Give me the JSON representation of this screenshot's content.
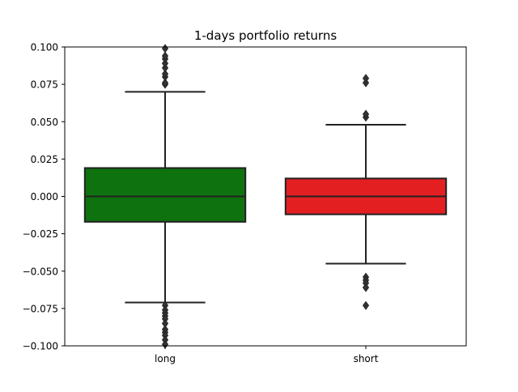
{
  "chart_data": {
    "type": "box",
    "title": "1-days portfolio returns",
    "xlabel": "",
    "ylabel": "",
    "categories": [
      "long",
      "short"
    ],
    "ylim": [
      -0.1,
      0.1
    ],
    "yticks": [
      -0.1,
      -0.075,
      -0.05,
      -0.025,
      0.0,
      0.025,
      0.05,
      0.075,
      0.1
    ],
    "ytick_labels": [
      "−0.100",
      "−0.075",
      "−0.050",
      "−0.025",
      "0.000",
      "0.025",
      "0.050",
      "0.075",
      "0.100"
    ],
    "grid": false,
    "boxes": [
      {
        "name": "long",
        "color": "#0e720e",
        "whisker_low": -0.071,
        "q1": -0.017,
        "median": 0.0,
        "q3": 0.019,
        "whisker_high": 0.07,
        "outliers": [
          0.075,
          0.076,
          0.08,
          0.082,
          0.086,
          0.089,
          0.092,
          0.094,
          0.099,
          -0.073,
          -0.076,
          -0.078,
          -0.08,
          -0.082,
          -0.085,
          -0.089,
          -0.091,
          -0.093,
          -0.096,
          -0.099
        ]
      },
      {
        "name": "short",
        "color": "#e41f22",
        "whisker_low": -0.045,
        "q1": -0.012,
        "median": 0.0,
        "q3": 0.012,
        "whisker_high": 0.048,
        "outliers": [
          0.053,
          0.055,
          0.076,
          0.079,
          -0.054,
          -0.056,
          -0.058,
          -0.061,
          -0.073
        ]
      }
    ]
  }
}
